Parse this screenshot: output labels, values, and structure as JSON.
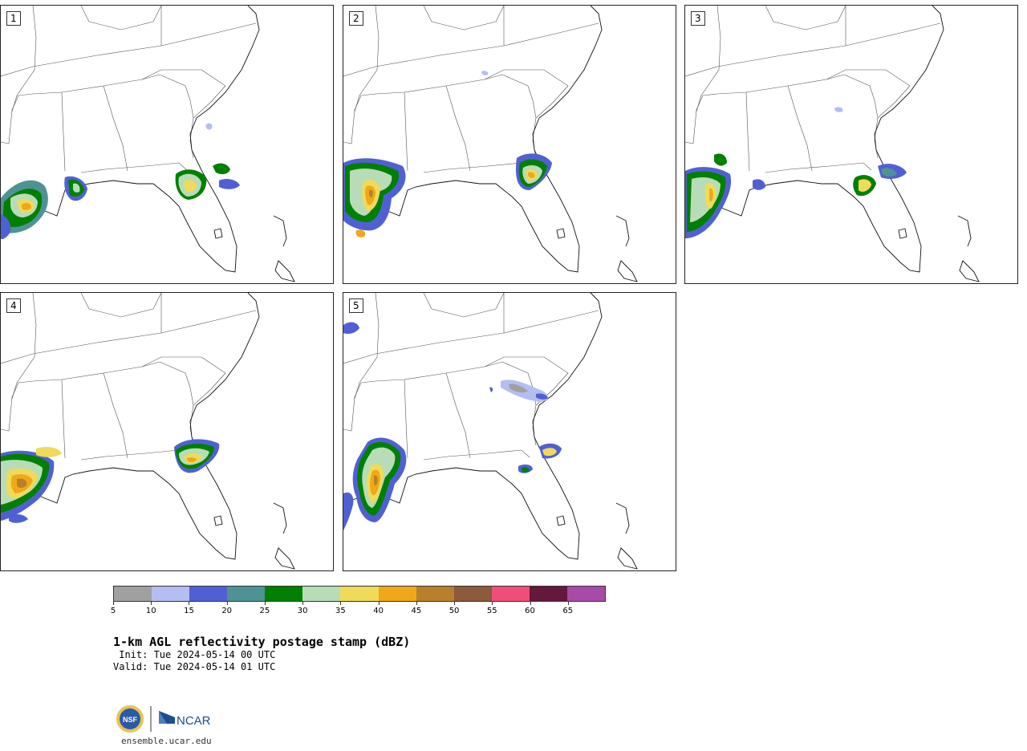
{
  "panels": [
    {
      "label": "1"
    },
    {
      "label": "2"
    },
    {
      "label": "3"
    },
    {
      "label": "4"
    },
    {
      "label": "5"
    }
  ],
  "colorbar": {
    "colors": [
      "#a0a0a0",
      "#b4bef0",
      "#5060d4",
      "#4e9294",
      "#008000",
      "#b8dcb8",
      "#f0da5a",
      "#f0a818",
      "#b8802c",
      "#8c5a3c",
      "#f04e78",
      "#64183c",
      "#a84aa8"
    ],
    "tick_labels": [
      "5",
      "10",
      "15",
      "20",
      "25",
      "30",
      "35",
      "40",
      "45",
      "50",
      "55",
      "60",
      "65"
    ]
  },
  "title": "1-km AGL reflectivity postage stamp (dBZ)",
  "init": " Init: Tue 2024-05-14 00 UTC",
  "valid": "Valid: Tue 2024-05-14 01 UTC",
  "footer": {
    "nsf_logo_text": "NSF",
    "ncar_logo_text": "NCAR",
    "url": "ensemble.ucar.edu"
  },
  "icons": {
    "nsf": "nsf-logo",
    "ncar": "ncar-logo"
  }
}
